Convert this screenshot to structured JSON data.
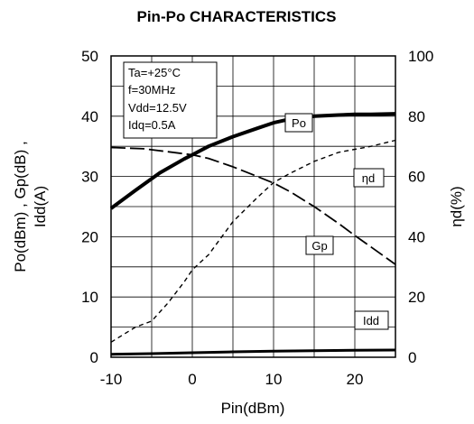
{
  "chart_data": {
    "type": "line",
    "title": "Pin-Po CHARACTERISTICS",
    "xlabel": "Pin(dBm)",
    "ylabel_lines": [
      "Po(dBm) , Gp(dB) ,",
      "Idd(A)"
    ],
    "y2label": "ηd(%)",
    "xlim": [
      -10,
      25
    ],
    "ylim": [
      0,
      50
    ],
    "y2lim": [
      0,
      100
    ],
    "x_ticks": [
      "-10",
      "0",
      "10",
      "20"
    ],
    "y_ticks": [
      "0",
      "10",
      "20",
      "30",
      "40",
      "50"
    ],
    "y2_ticks": [
      "0",
      "20",
      "40",
      "60",
      "80",
      "100"
    ],
    "grid": true,
    "conditions": [
      "Ta=+25°C",
      "f=30MHz",
      "Vdd=12.5V",
      "Idq=0.5A"
    ],
    "series": [
      {
        "name": "Po",
        "axis": "left",
        "style": "solid-thick",
        "x": [
          -10,
          -7,
          -4,
          -1,
          0,
          2,
          5,
          8,
          10,
          12,
          15,
          18,
          20,
          22,
          25
        ],
        "y": [
          24.7,
          27.7,
          30.6,
          32.9,
          33.6,
          35.0,
          36.6,
          38.0,
          38.9,
          39.5,
          40.0,
          40.2,
          40.3,
          40.3,
          40.4
        ]
      },
      {
        "name": "Gp",
        "axis": "left",
        "style": "long-dash",
        "x": [
          -10,
          -6,
          -3,
          0,
          2,
          5,
          8,
          10,
          12,
          15,
          18,
          20,
          22,
          25
        ],
        "y": [
          34.8,
          34.6,
          34.1,
          33.6,
          33.0,
          31.6,
          30.0,
          28.9,
          27.5,
          25.0,
          22.2,
          20.2,
          18.3,
          15.4
        ]
      },
      {
        "name": "ηd",
        "axis": "right",
        "style": "short-dash",
        "x": [
          -10,
          -7,
          -5,
          -3,
          -1,
          0,
          2,
          5,
          8,
          10,
          12,
          15,
          18,
          20,
          22,
          25
        ],
        "y": [
          5,
          10,
          12,
          18,
          25,
          29,
          34,
          45,
          53,
          58,
          61,
          65,
          68,
          69,
          70,
          72
        ]
      },
      {
        "name": "Idd",
        "axis": "left",
        "style": "solid",
        "x": [
          -10,
          -5,
          0,
          5,
          10,
          15,
          20,
          25
        ],
        "y": [
          0.5,
          0.6,
          0.75,
          0.9,
          1.0,
          1.1,
          1.15,
          1.2
        ]
      }
    ]
  }
}
